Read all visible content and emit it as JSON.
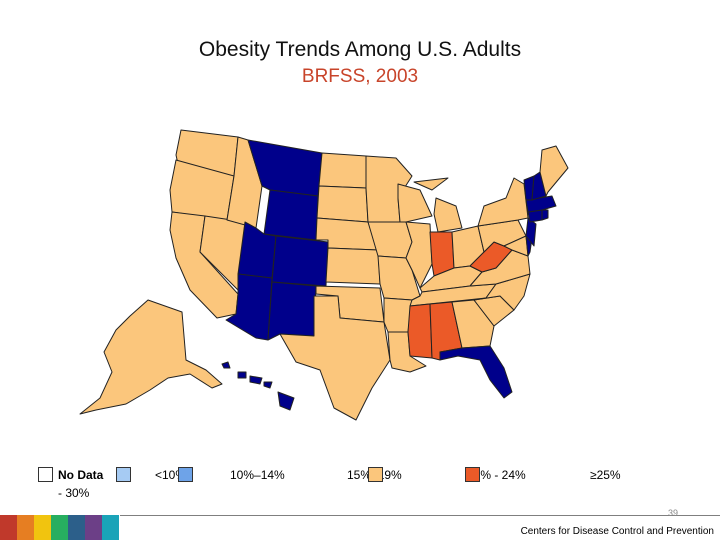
{
  "title": "Obesity Trends Among U.S. Adults",
  "subtitle": "BRFSS, 2003",
  "colors": {
    "no_data": "#ffffff",
    "lt10": "#a6cbf3",
    "10_14": "#6ea3e8",
    "15_19": "#fbc67c",
    "20_24": "#eb5a28",
    "gte25": "#b0202a",
    "highlight_blue": "#00008b",
    "border": "#222222"
  },
  "legend": [
    {
      "label": "No Data",
      "color_key": "no_data"
    },
    {
      "label": "<10%",
      "color_key": "lt10"
    },
    {
      "label": "10%–14%",
      "color_key": "10_14"
    },
    {
      "label": "15%–19%",
      "color_key": "15_19"
    },
    {
      "label": "20% - 24%",
      "color_key": "20_24"
    },
    {
      "label": "≥25%",
      "color_key": "gte25"
    }
  ],
  "legend_wrap_text": "- 30%",
  "categories": {
    "highlight_blue": [
      "MT",
      "WY",
      "UT",
      "CO",
      "AZ",
      "NM",
      "FL",
      "HI",
      "NH",
      "VT",
      "MA",
      "RI",
      "CT",
      "NJ",
      "DE"
    ],
    "20_24": [
      "IN",
      "WV",
      "MS",
      "AL"
    ],
    "15_19": [
      "WA",
      "OR",
      "CA",
      "NV",
      "ID",
      "ND",
      "SD",
      "NE",
      "KS",
      "OK",
      "TX",
      "MN",
      "IA",
      "MO",
      "AR",
      "LA",
      "WI",
      "IL",
      "MI",
      "KY",
      "TN",
      "OH",
      "PA",
      "NY",
      "ME",
      "GA",
      "SC",
      "NC",
      "VA",
      "MD",
      "AK"
    ]
  },
  "footer": {
    "page_number": "39",
    "credit": "Centers for Disease Control and Prevention",
    "bar_colors": [
      "#c0392b",
      "#e67e22",
      "#f1c40f",
      "#27ae60",
      "#2c5f8a",
      "#6c3f87",
      "#1aa3b8"
    ]
  }
}
